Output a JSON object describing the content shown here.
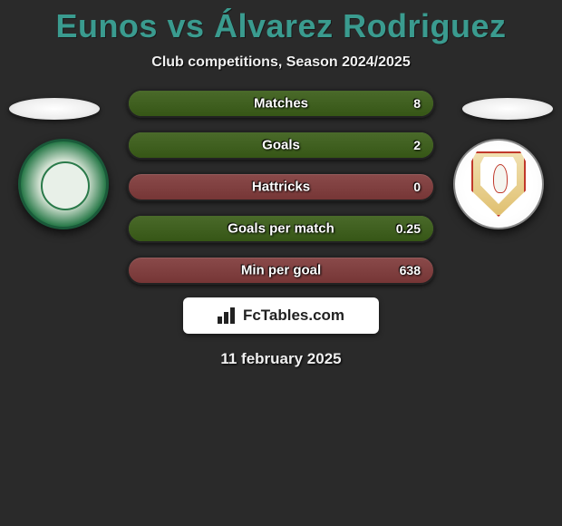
{
  "title": "Eunos vs Álvarez Rodriguez",
  "subtitle": "Club competitions, Season 2024/2025",
  "stats": [
    {
      "label": "Matches",
      "value": "8",
      "fill_pct": 100,
      "track_color": "#5a7a3a",
      "fill_color": "#4a6a2a"
    },
    {
      "label": "Goals",
      "value": "2",
      "fill_pct": 100,
      "track_color": "#5a7a3a",
      "fill_color": "#4a6a2a"
    },
    {
      "label": "Hattricks",
      "value": "0",
      "fill_pct": 0,
      "track_color": "#8a4a4a",
      "fill_color": "#4a6a2a"
    },
    {
      "label": "Goals per match",
      "value": "0.25",
      "fill_pct": 100,
      "track_color": "#5a7a3a",
      "fill_color": "#4a6a2a"
    },
    {
      "label": "Min per goal",
      "value": "638",
      "fill_pct": 0,
      "track_color": "#8a4a4a",
      "fill_color": "#4a6a2a"
    }
  ],
  "branding": "FcTables.com",
  "date": "11 february 2025",
  "colors": {
    "background": "#2a2a2a",
    "title": "#3a9b8f",
    "text": "#f0f0f0"
  },
  "layout": {
    "stat_bar_width": 340,
    "stat_bar_height": 32,
    "stat_bar_radius": 16
  }
}
